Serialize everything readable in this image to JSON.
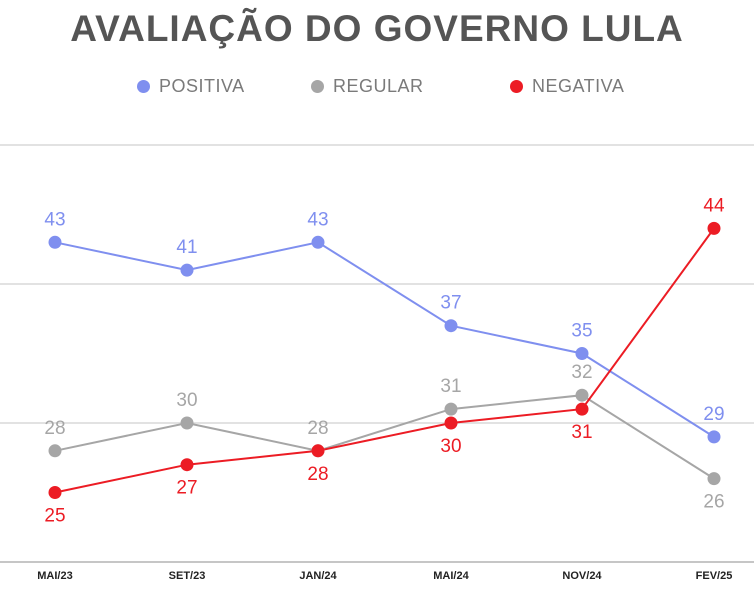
{
  "chart_data": {
    "type": "line",
    "title": "AVALIAÇÃO DO GOVERNO LULA",
    "categories": [
      "MAI/23",
      "SET/23",
      "JAN/24",
      "MAI/24",
      "NOV/24",
      "FEV/25"
    ],
    "series": [
      {
        "name": "POSITIVA",
        "color": "#7f8fef",
        "values": [
          43,
          41,
          43,
          37,
          35,
          29
        ]
      },
      {
        "name": "REGULAR",
        "color": "#a6a6a6",
        "values": [
          28,
          30,
          28,
          31,
          32,
          26
        ]
      },
      {
        "name": "NEGATIVA",
        "color": "#ec1c24",
        "values": [
          25,
          27,
          28,
          30,
          31,
          44
        ]
      }
    ],
    "ylim": [
      20,
      50
    ],
    "grid": true,
    "legend": "top"
  }
}
